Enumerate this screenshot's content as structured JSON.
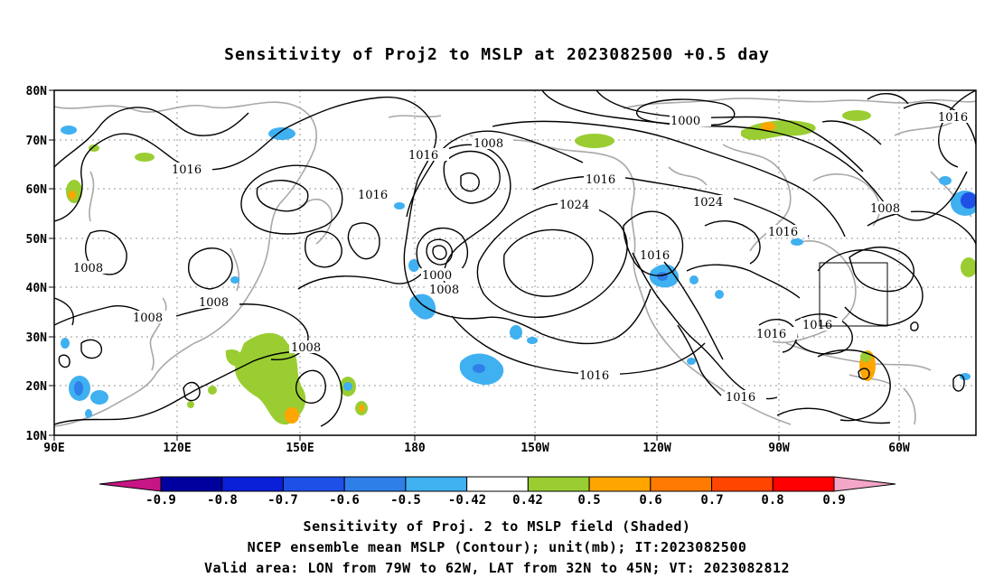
{
  "title": "Sensitivity of Proj2 to MSLP at 2023082500 +0.5 day",
  "map": {
    "lat_labels": [
      "80N",
      "70N",
      "60N",
      "50N",
      "40N",
      "30N",
      "20N",
      "10N"
    ],
    "lon_labels": [
      "90E",
      "120E",
      "150E",
      "180",
      "150W",
      "120W",
      "90W",
      "60W"
    ],
    "contour_labels": [
      "1016",
      "1008",
      "1016",
      "1016",
      "1016",
      "1008",
      "1024",
      "1016",
      "1000",
      "1008",
      "1024",
      "1016",
      "1008",
      "1008",
      "1008",
      "1000",
      "1008",
      "1008",
      "1016",
      "1016",
      "1016",
      "1016",
      "1016"
    ],
    "valid_area_box": {
      "lon_from": "79W",
      "lon_to": "62W",
      "lat_from": "32N",
      "lat_to": "45N"
    }
  },
  "colorbar": {
    "labels": [
      "-0.9",
      "-0.8",
      "-0.7",
      "-0.6",
      "-0.5",
      "-0.42",
      "0.42",
      "0.5",
      "0.6",
      "0.7",
      "0.8",
      "0.9"
    ],
    "colors": [
      "#00009e",
      "#0a1fd8",
      "#1e4fe6",
      "#2f7fe8",
      "#3fb0f0",
      "#ffffff",
      "#9acd32",
      "#ffa500",
      "#ff7a00",
      "#ff4500",
      "#ff0000"
    ],
    "low_end_color": "#c71585",
    "high_end_color": "#f4a6c8"
  },
  "captions": {
    "line1": "Sensitivity of Proj. 2 to MSLP field (Shaded)",
    "line2": "NCEP ensemble mean MSLP (Contour); unit(mb); IT:2023082500",
    "line3": "Valid area: LON from 79W to 62W, LAT from 32N to 45N; VT: 2023082812"
  }
}
